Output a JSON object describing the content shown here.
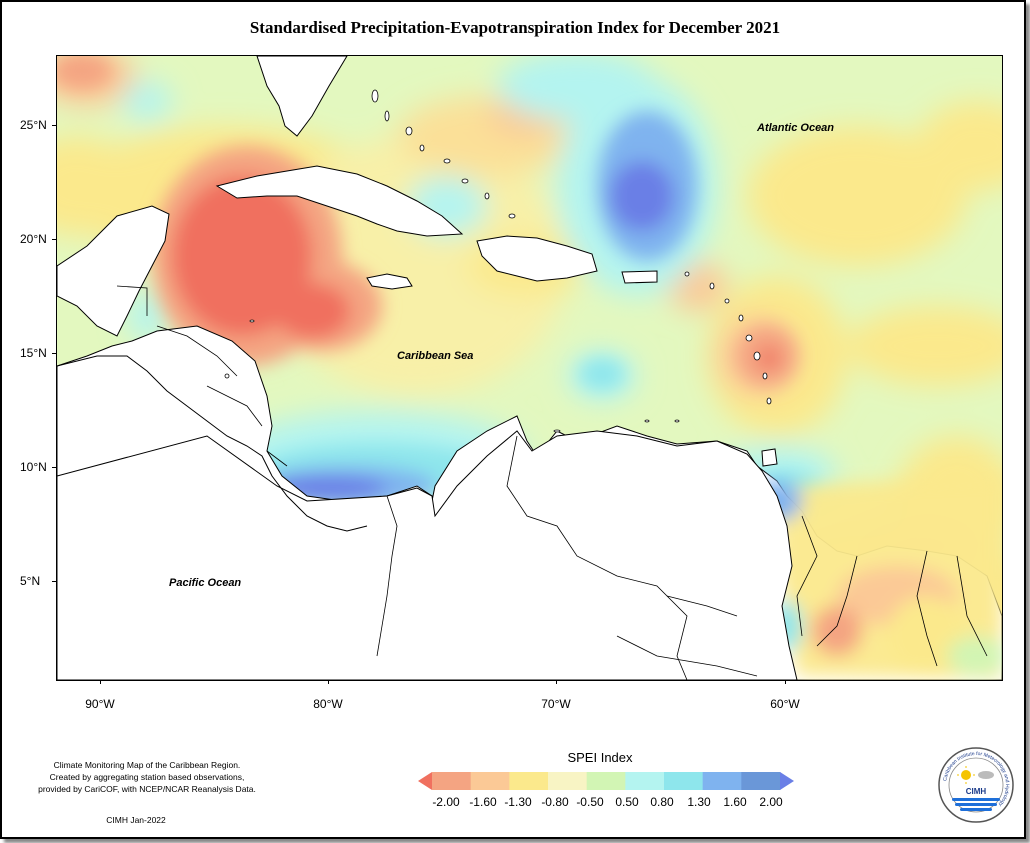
{
  "title": "Standardised Precipitation-Evapotranspiration Index for December 2021",
  "map": {
    "places": {
      "atlantic": "Atlantic Ocean",
      "caribbean": "Caribbean Sea",
      "pacific": "Pacific Ocean"
    },
    "lat_labels": [
      "25°N",
      "20°N",
      "15°N",
      "10°N",
      "5°N"
    ],
    "lon_labels": [
      "90°W",
      "80°W",
      "70°W",
      "60°W"
    ]
  },
  "legend": {
    "title": "SPEI Index",
    "breaks": [
      "-2.00",
      "-1.60",
      "-1.30",
      "-0.80",
      "-0.50",
      "0.50",
      "0.80",
      "1.30",
      "1.60",
      "2.00"
    ],
    "colors": [
      "#f0705f",
      "#f4a482",
      "#fbc996",
      "#fbe98c",
      "#f8f4c4",
      "#d2f5b4",
      "#b4f4f0",
      "#8ee6ec",
      "#7fb3ef",
      "#6a97d8",
      "#6a7fe6"
    ]
  },
  "footnote": {
    "line1": "Climate Monitoring Map of the Caribbean Region.",
    "line2": "Created by aggregating station based observations,",
    "line3": "provided by CariCOF, with NCEP/NCAR Reanalysis Data.",
    "credit": "CIMH Jan-2022"
  },
  "logo": {
    "text": "CIMH",
    "ring_text": "Caribbean Institute for Meteorology and Hydrology"
  }
}
